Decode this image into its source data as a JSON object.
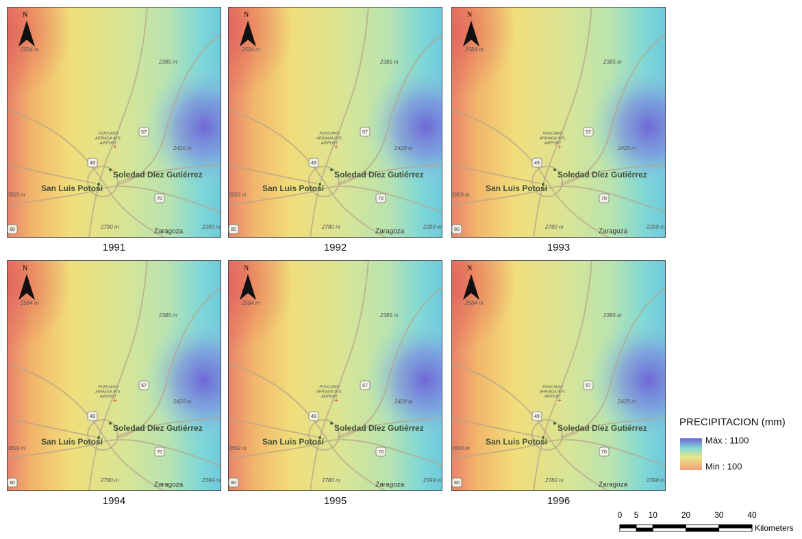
{
  "panels": [
    {
      "year": "1991"
    },
    {
      "year": "1992"
    },
    {
      "year": "1993"
    },
    {
      "year": "1994"
    },
    {
      "year": "1995"
    },
    {
      "year": "1996"
    }
  ],
  "map_labels": {
    "north": "N",
    "elev_nw": "2584 m",
    "elev_n": "2385 m",
    "elev_e": "2420 m",
    "elev_w": "2859 m",
    "elev_s": "2780 m",
    "elev_se": "2399 m",
    "town_se": "Zaragoza",
    "city": "San Luis Potosí",
    "city2": "Soledad Díez Gutiérrez",
    "airport": [
      "PONCIANO",
      "ARRIAGA INTL",
      "AIRPORT"
    ],
    "roads": [
      "57",
      "49",
      "70",
      "80"
    ]
  },
  "legend": {
    "title": "PRECIPITACION (mm)",
    "max": "Máx : 1100",
    "min": "Min : 100"
  },
  "scale_bar": {
    "ticks": [
      0,
      5,
      10,
      20,
      30,
      40
    ],
    "unit": "Kilometers"
  }
}
